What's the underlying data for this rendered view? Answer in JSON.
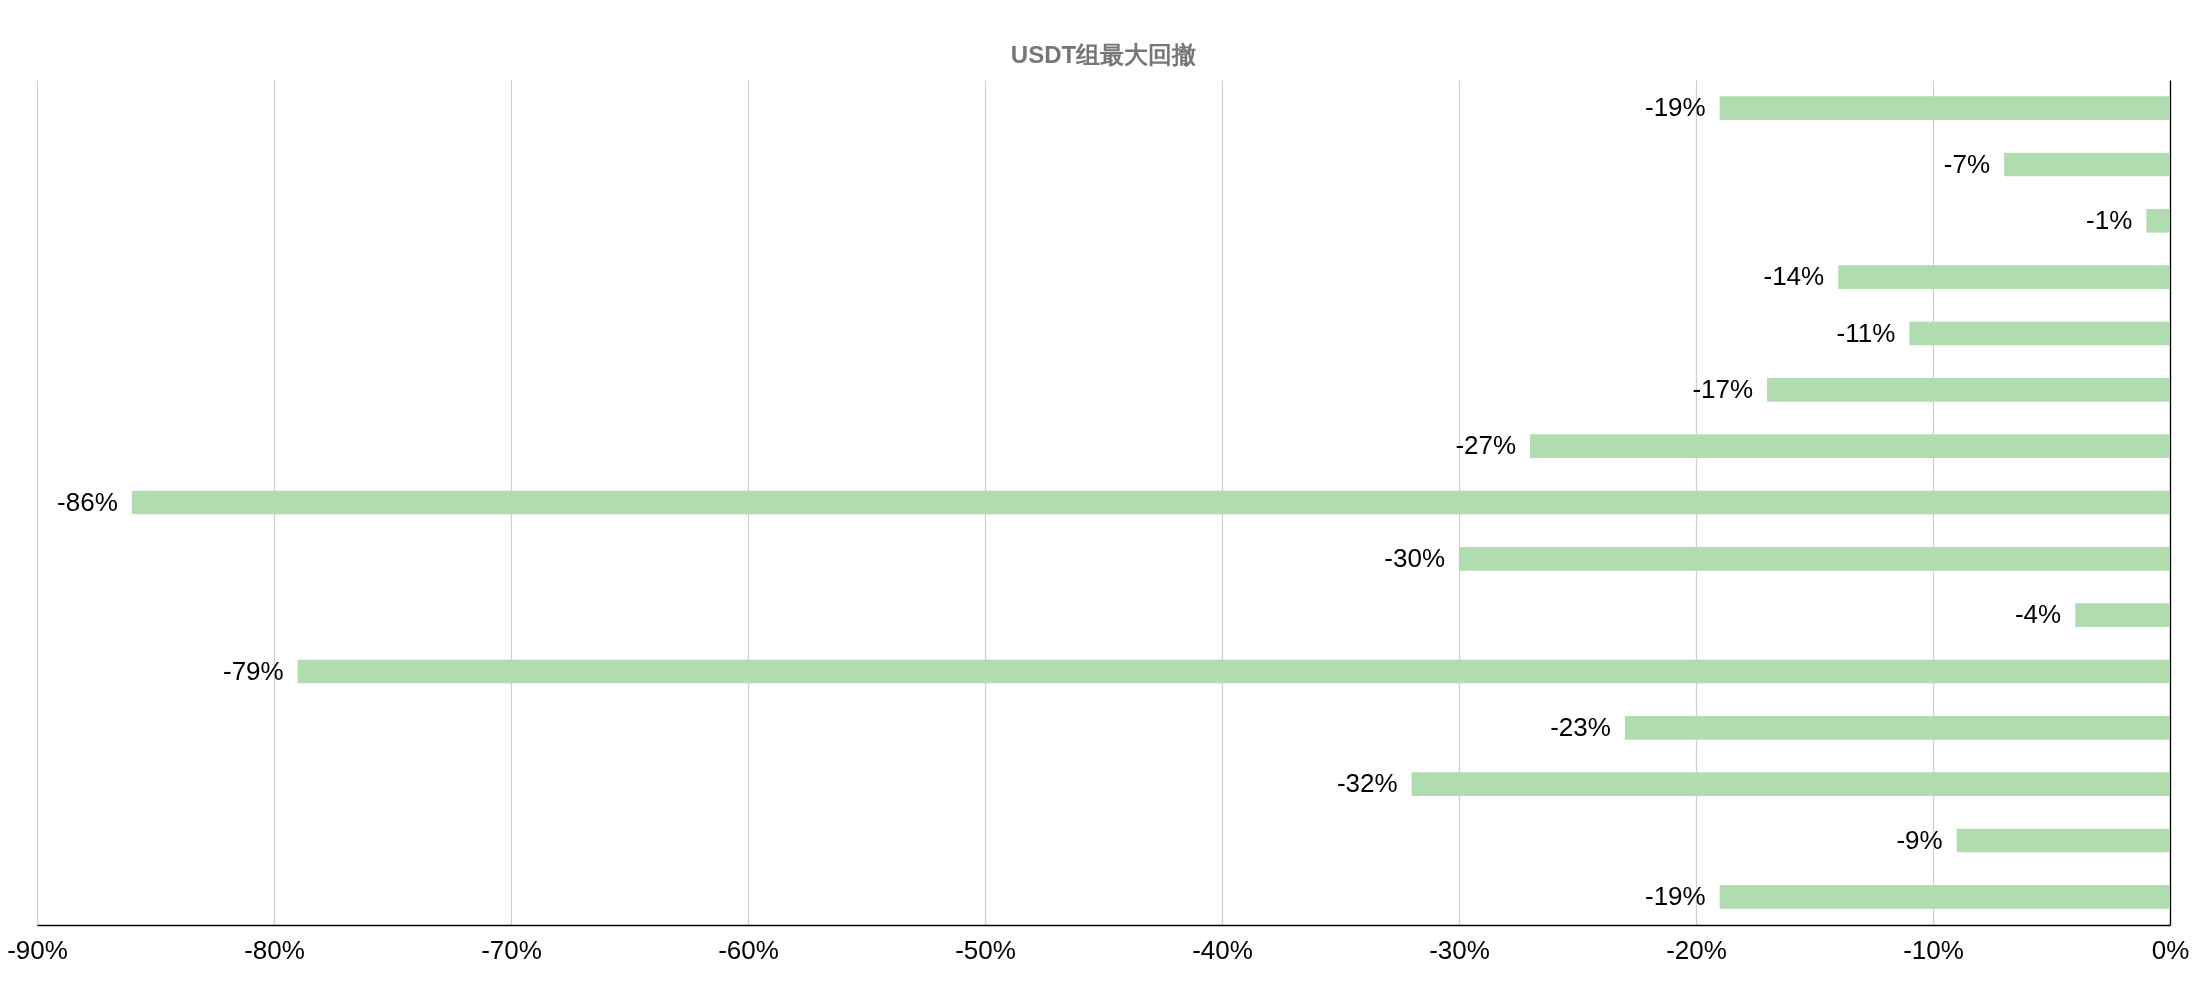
{
  "chart_data": {
    "type": "bar",
    "orientation": "horizontal",
    "title": "USDT组最大回撤",
    "categories": [
      null,
      null,
      null,
      null,
      null,
      null,
      null,
      null,
      null,
      null,
      null,
      null,
      null,
      null,
      null
    ],
    "values": [
      -19,
      -7,
      -1,
      -14,
      -11,
      -17,
      -27,
      -86,
      -30,
      -4,
      -79,
      -23,
      -32,
      -9,
      -19
    ],
    "value_labels": [
      "-19%",
      "-7%",
      "-1%",
      "-14%",
      "-11%",
      "-17%",
      "-27%",
      "-86%",
      "-30%",
      "-4%",
      "-79%",
      "-23%",
      "-32%",
      "-9%",
      "-19%"
    ],
    "color": "#b1dcb0",
    "xlim": [
      -90,
      0
    ],
    "xticks": [
      {
        "value": -90,
        "label": "-90%"
      },
      {
        "value": -80,
        "label": "-80%"
      },
      {
        "value": -70,
        "label": "-70%"
      },
      {
        "value": -60,
        "label": "-60%"
      },
      {
        "value": -50,
        "label": "-50%"
      },
      {
        "value": -40,
        "label": "-40%"
      },
      {
        "value": -30,
        "label": "-30%"
      },
      {
        "value": -20,
        "label": "-20%"
      },
      {
        "value": -10,
        "label": "-10%"
      },
      {
        "value": 0,
        "label": "0%"
      }
    ],
    "grid": "x",
    "tick_labels": "x"
  }
}
